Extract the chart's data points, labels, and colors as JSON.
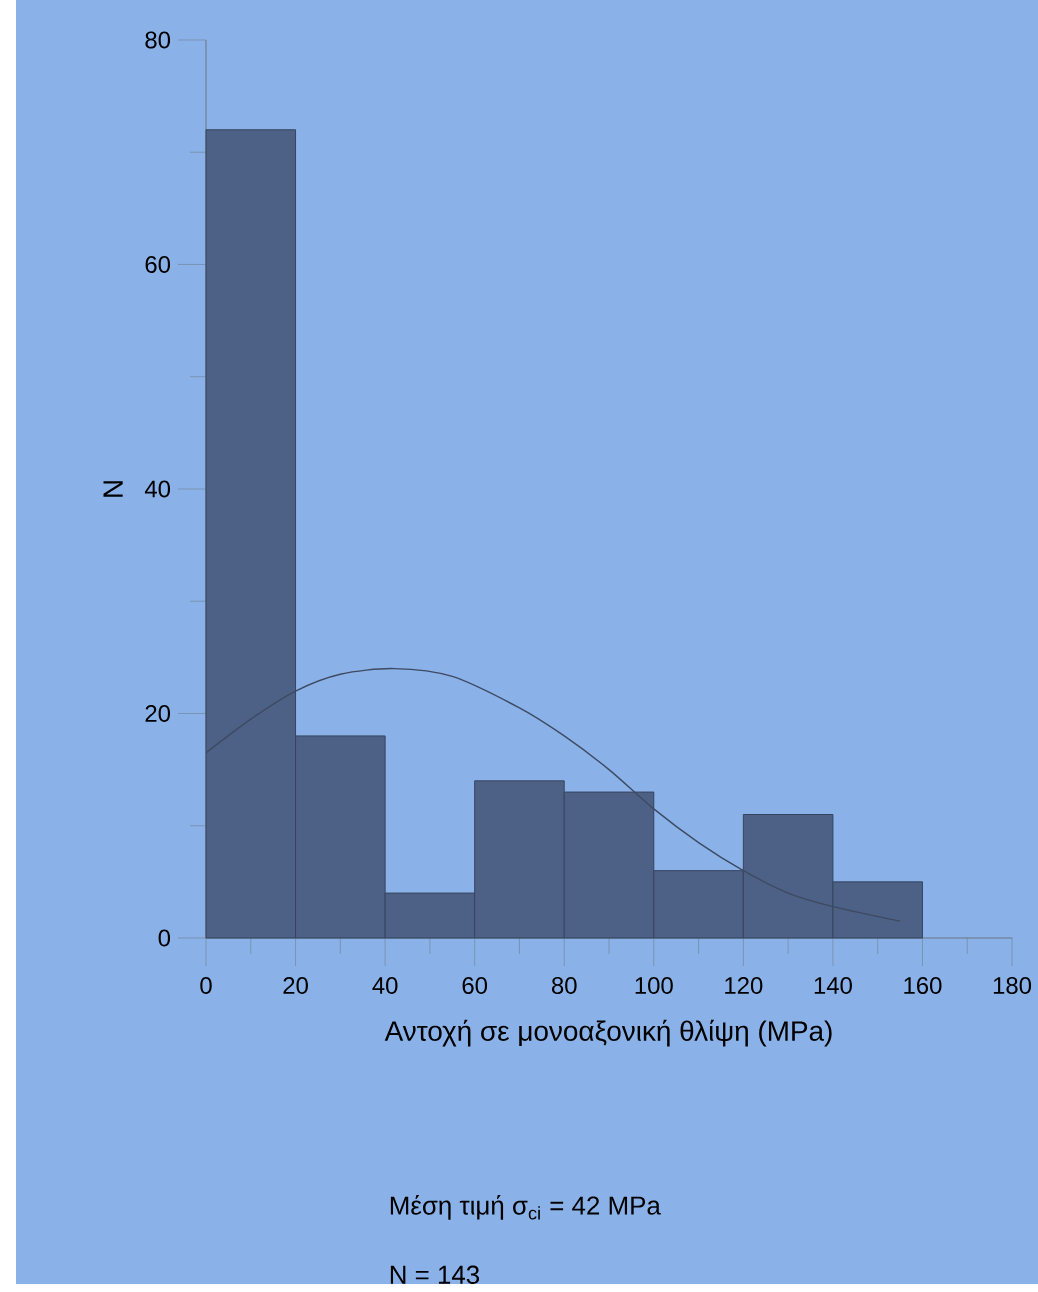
{
  "chart_data": {
    "type": "histogram",
    "xlabel": "Αντοχή σε μονοαξονική θλίψη (MPa)",
    "ylabel": "N",
    "bins": [
      0,
      20,
      40,
      60,
      80,
      100,
      120,
      140,
      160
    ],
    "values": [
      72,
      18,
      4,
      14,
      13,
      6,
      11,
      5
    ],
    "color": "#4d6186",
    "series": [
      {
        "type": "line",
        "color": "#3d4a62",
        "x": [
          0,
          10,
          20,
          30,
          42,
          55,
          70,
          80,
          90,
          100,
          110,
          120,
          130,
          140,
          155
        ],
        "values": [
          16.5,
          19.5,
          22,
          23.5,
          24,
          23.3,
          20.5,
          18,
          15,
          11.5,
          8.5,
          6,
          4,
          2.8,
          1.5
        ]
      }
    ],
    "xlim": [
      0,
      180
    ],
    "xticks": [
      0,
      20,
      40,
      60,
      80,
      100,
      120,
      140,
      160,
      180
    ],
    "ylim": [
      0,
      80
    ],
    "yticks": [
      0,
      20,
      40,
      60,
      80
    ],
    "grid": false,
    "annotations": [
      "Μέση τιμή σ$_{ci}$ = 42 MPa",
      "N = 143"
    ]
  }
}
